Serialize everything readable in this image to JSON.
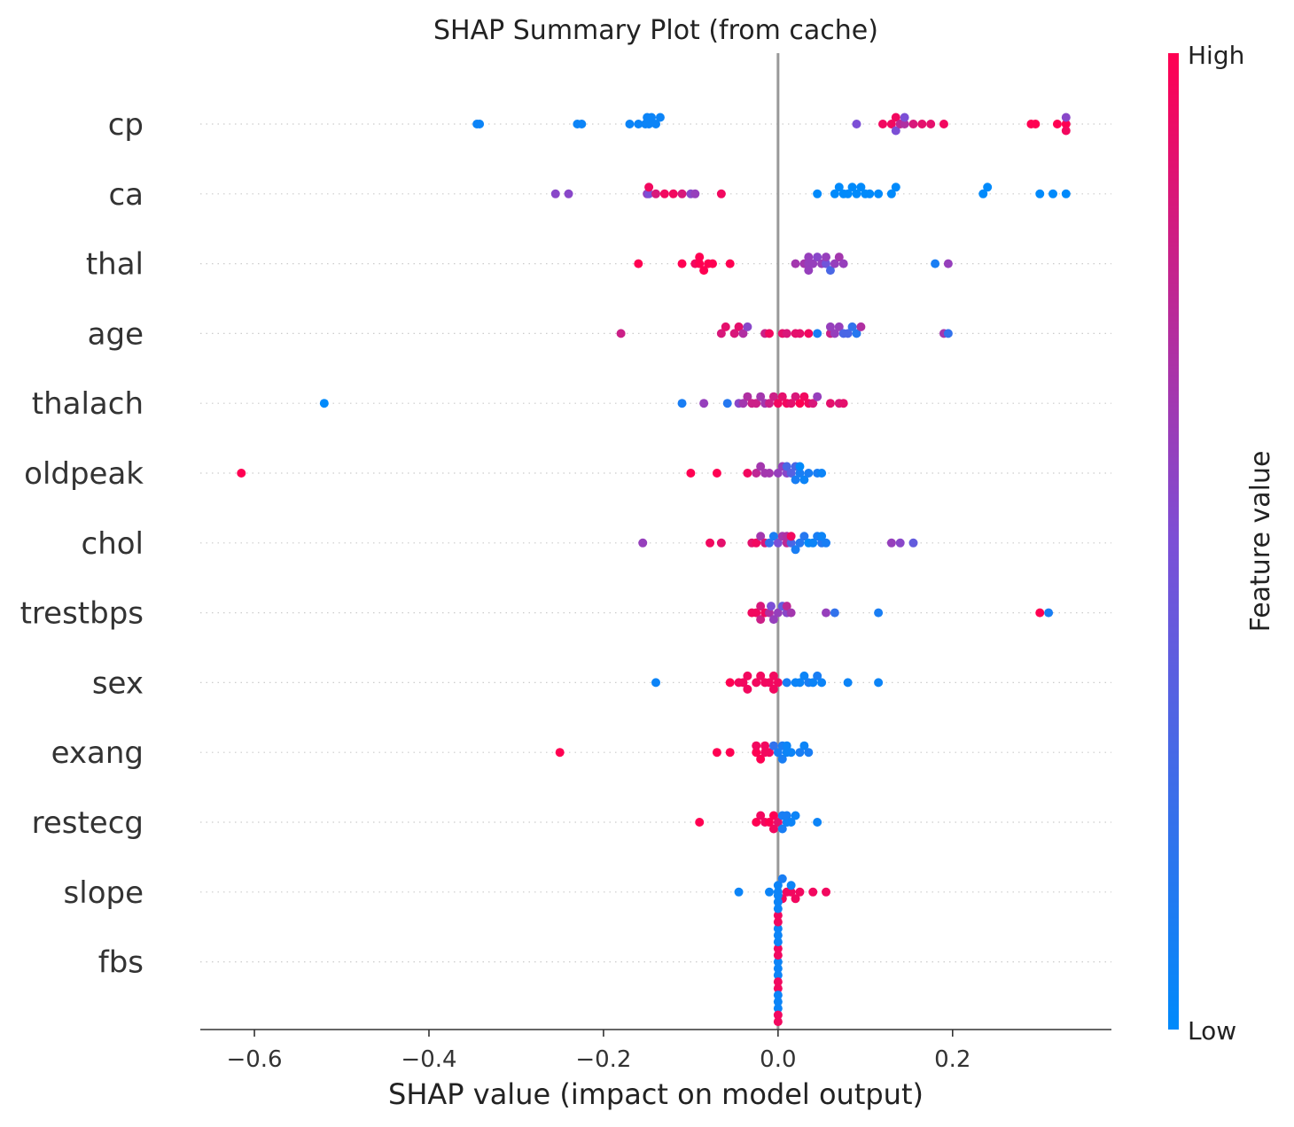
{
  "chart_data": {
    "type": "scatter",
    "title": "SHAP Summary Plot (from cache)",
    "xlabel": "SHAP value (impact on model output)",
    "ylabel": "",
    "xlim": [
      -0.662,
      0.382
    ],
    "xticks": [
      {
        "value": -0.6,
        "label": "−0.6"
      },
      {
        "value": -0.4,
        "label": "−0.4"
      },
      {
        "value": -0.2,
        "label": "−0.2"
      },
      {
        "value": 0.0,
        "label": "0.0"
      },
      {
        "value": 0.2,
        "label": "0.2"
      }
    ],
    "zero_line": 0.0,
    "grid": false,
    "colorbar": {
      "label": "Feature value",
      "high_label": "High",
      "low_label": "Low",
      "low_color": "#008afb",
      "mid_color": "#7c4fd6",
      "high_color": "#ff0052"
    },
    "features": [
      {
        "name": "cp",
        "points": [
          [
            -0.345,
            0.05
          ],
          [
            -0.342,
            0.05
          ],
          [
            -0.23,
            0.05
          ],
          [
            -0.225,
            0.05
          ],
          [
            -0.17,
            0.05
          ],
          [
            -0.145,
            0.05
          ],
          [
            -0.14,
            0.05
          ],
          [
            -0.16,
            0.05
          ],
          [
            -0.135,
            0.05
          ],
          [
            -0.15,
            0.05
          ],
          [
            -0.148,
            0.05
          ],
          [
            -0.152,
            0.05
          ],
          [
            0.09,
            0.5
          ],
          [
            0.12,
            0.95
          ],
          [
            0.135,
            0.95
          ],
          [
            0.14,
            0.75
          ],
          [
            0.145,
            0.7
          ],
          [
            0.155,
            0.85
          ],
          [
            0.165,
            0.9
          ],
          [
            0.175,
            0.9
          ],
          [
            0.19,
            0.95
          ],
          [
            0.145,
            0.5
          ],
          [
            0.135,
            0.5
          ],
          [
            0.29,
            1.0
          ],
          [
            0.295,
            1.0
          ],
          [
            0.32,
            1.0
          ],
          [
            0.33,
            1.0
          ],
          [
            0.33,
            0.55
          ],
          [
            0.33,
            0.95
          ],
          [
            0.13,
            0.95
          ]
        ]
      },
      {
        "name": "ca",
        "points": [
          [
            -0.255,
            0.55
          ],
          [
            -0.24,
            0.55
          ],
          [
            -0.15,
            0.6
          ],
          [
            -0.148,
            0.5
          ],
          [
            -0.14,
            0.85
          ],
          [
            -0.13,
            0.95
          ],
          [
            -0.12,
            0.95
          ],
          [
            -0.11,
            0.85
          ],
          [
            -0.1,
            0.55
          ],
          [
            -0.095,
            0.6
          ],
          [
            -0.065,
            0.95
          ],
          [
            -0.148,
            0.95
          ],
          [
            0.045,
            0.0
          ],
          [
            0.065,
            0.0
          ],
          [
            0.07,
            0.0
          ],
          [
            0.075,
            0.0
          ],
          [
            0.08,
            0.0
          ],
          [
            0.085,
            0.0
          ],
          [
            0.09,
            0.0
          ],
          [
            0.095,
            0.0
          ],
          [
            0.1,
            0.0
          ],
          [
            0.105,
            0.0
          ],
          [
            0.115,
            0.0
          ],
          [
            0.13,
            0.0
          ],
          [
            0.135,
            0.0
          ],
          [
            0.235,
            0.0
          ],
          [
            0.24,
            0.0
          ],
          [
            0.3,
            0.0
          ],
          [
            0.315,
            0.0
          ],
          [
            0.33,
            0.0
          ]
        ]
      },
      {
        "name": "thal",
        "points": [
          [
            -0.16,
            1.0
          ],
          [
            -0.11,
            1.0
          ],
          [
            -0.09,
            1.0
          ],
          [
            -0.08,
            1.0
          ],
          [
            -0.075,
            1.0
          ],
          [
            -0.095,
            0.95
          ],
          [
            -0.09,
            1.0
          ],
          [
            -0.085,
            1.0
          ],
          [
            -0.055,
            1.0
          ],
          [
            0.02,
            0.65
          ],
          [
            0.03,
            0.65
          ],
          [
            0.035,
            0.6
          ],
          [
            0.04,
            0.6
          ],
          [
            0.045,
            0.55
          ],
          [
            0.05,
            0.6
          ],
          [
            0.055,
            0.45
          ],
          [
            0.06,
            0.3
          ],
          [
            0.065,
            0.6
          ],
          [
            0.07,
            0.65
          ],
          [
            0.075,
            0.6
          ],
          [
            0.035,
            0.6
          ],
          [
            0.055,
            0.6
          ],
          [
            0.035,
            0.6
          ],
          [
            0.18,
            0.1
          ],
          [
            0.195,
            0.6
          ]
        ]
      },
      {
        "name": "age",
        "points": [
          [
            -0.18,
            0.8
          ],
          [
            -0.065,
            0.85
          ],
          [
            -0.06,
            0.9
          ],
          [
            -0.05,
            0.85
          ],
          [
            -0.045,
            0.9
          ],
          [
            -0.04,
            0.7
          ],
          [
            -0.035,
            0.55
          ],
          [
            -0.015,
            0.8
          ],
          [
            -0.01,
            0.95
          ],
          [
            0.005,
            0.9
          ],
          [
            0.01,
            0.85
          ],
          [
            0.02,
            0.9
          ],
          [
            0.025,
            0.9
          ],
          [
            0.035,
            0.95
          ],
          [
            0.045,
            0.1
          ],
          [
            0.06,
            0.8
          ],
          [
            0.065,
            0.6
          ],
          [
            0.07,
            0.6
          ],
          [
            0.075,
            0.3
          ],
          [
            0.08,
            0.3
          ],
          [
            0.085,
            0.2
          ],
          [
            0.09,
            0.15
          ],
          [
            0.095,
            0.7
          ],
          [
            0.19,
            0.65
          ],
          [
            0.195,
            0.2
          ],
          [
            0.06,
            0.6
          ]
        ]
      },
      {
        "name": "thalach",
        "points": [
          [
            -0.52,
            0.0
          ],
          [
            -0.11,
            0.1
          ],
          [
            -0.085,
            0.6
          ],
          [
            -0.058,
            0.15
          ],
          [
            -0.04,
            0.65
          ],
          [
            -0.035,
            0.7
          ],
          [
            -0.03,
            0.8
          ],
          [
            -0.025,
            0.8
          ],
          [
            -0.02,
            0.65
          ],
          [
            -0.015,
            0.65
          ],
          [
            -0.01,
            0.8
          ],
          [
            -0.005,
            0.8
          ],
          [
            0.0,
            0.95
          ],
          [
            0.005,
            0.9
          ],
          [
            0.01,
            0.95
          ],
          [
            0.015,
            0.9
          ],
          [
            0.02,
            0.85
          ],
          [
            0.025,
            1.0
          ],
          [
            0.03,
            0.95
          ],
          [
            0.035,
            0.95
          ],
          [
            0.04,
            0.85
          ],
          [
            0.045,
            0.6
          ],
          [
            0.06,
            0.9
          ],
          [
            0.07,
            0.85
          ],
          [
            0.075,
            0.9
          ],
          [
            -0.045,
            0.55
          ]
        ]
      },
      {
        "name": "oldpeak",
        "points": [
          [
            -0.615,
            1.0
          ],
          [
            -0.1,
            1.0
          ],
          [
            -0.07,
            1.0
          ],
          [
            -0.035,
            0.95
          ],
          [
            -0.025,
            0.75
          ],
          [
            -0.02,
            0.65
          ],
          [
            -0.015,
            0.65
          ],
          [
            -0.01,
            0.65
          ],
          [
            0.0,
            0.6
          ],
          [
            0.005,
            0.6
          ],
          [
            0.01,
            0.55
          ],
          [
            0.015,
            0.35
          ],
          [
            0.02,
            0.3
          ],
          [
            0.025,
            0.1
          ],
          [
            0.03,
            0.05
          ],
          [
            0.035,
            0.1
          ],
          [
            0.045,
            0.1
          ],
          [
            0.05,
            0.05
          ],
          [
            0.02,
            0.1
          ],
          [
            0.01,
            0.3
          ],
          [
            0.025,
            0.0
          ]
        ]
      },
      {
        "name": "chol",
        "points": [
          [
            -0.155,
            0.6
          ],
          [
            -0.078,
            0.95
          ],
          [
            -0.065,
            0.9
          ],
          [
            -0.03,
            0.9
          ],
          [
            -0.025,
            0.95
          ],
          [
            -0.02,
            0.65
          ],
          [
            -0.015,
            0.85
          ],
          [
            -0.01,
            0.2
          ],
          [
            -0.005,
            0.1
          ],
          [
            0.0,
            0.5
          ],
          [
            0.005,
            0.65
          ],
          [
            0.01,
            0.75
          ],
          [
            0.015,
            0.3
          ],
          [
            0.02,
            0.1
          ],
          [
            0.025,
            0.15
          ],
          [
            0.03,
            0.15
          ],
          [
            0.035,
            0.0
          ],
          [
            0.04,
            0.05
          ],
          [
            0.045,
            0.1
          ],
          [
            0.05,
            0.15
          ],
          [
            0.055,
            0.1
          ],
          [
            0.015,
            0.95
          ],
          [
            0.01,
            0.7
          ],
          [
            0.13,
            0.6
          ],
          [
            0.14,
            0.55
          ],
          [
            0.155,
            0.4
          ],
          [
            0.05,
            0.05
          ]
        ]
      },
      {
        "name": "trestbps",
        "points": [
          [
            -0.03,
            0.95
          ],
          [
            -0.025,
            0.95
          ],
          [
            -0.02,
            0.85
          ],
          [
            -0.015,
            0.95
          ],
          [
            -0.01,
            0.7
          ],
          [
            -0.005,
            0.6
          ],
          [
            0.0,
            0.6
          ],
          [
            0.005,
            0.4
          ],
          [
            0.01,
            0.55
          ],
          [
            0.015,
            0.65
          ],
          [
            -0.008,
            0.5
          ],
          [
            0.01,
            0.75
          ],
          [
            0.055,
            0.6
          ],
          [
            0.065,
            0.2
          ],
          [
            0.115,
            0.1
          ],
          [
            0.3,
            1.0
          ],
          [
            0.31,
            0.1
          ],
          [
            -0.02,
            0.8
          ]
        ]
      },
      {
        "name": "sex",
        "points": [
          [
            -0.14,
            0.05
          ],
          [
            -0.055,
            1.0
          ],
          [
            -0.045,
            0.95
          ],
          [
            -0.035,
            0.95
          ],
          [
            -0.025,
            0.95
          ],
          [
            -0.015,
            0.95
          ],
          [
            -0.01,
            0.95
          ],
          [
            -0.005,
            0.95
          ],
          [
            0.0,
            0.95
          ],
          [
            0.02,
            0.05
          ],
          [
            0.03,
            0.05
          ],
          [
            0.04,
            0.05
          ],
          [
            0.05,
            0.05
          ],
          [
            0.025,
            0.05
          ],
          [
            0.08,
            0.05
          ],
          [
            0.115,
            0.05
          ],
          [
            0.01,
            0.1
          ],
          [
            0.035,
            0.1
          ],
          [
            0.045,
            0.1
          ],
          [
            -0.005,
            0.95
          ],
          [
            -0.02,
            0.95
          ],
          [
            -0.035,
            0.95
          ],
          [
            -0.04,
            0.95
          ]
        ]
      },
      {
        "name": "exang",
        "points": [
          [
            -0.25,
            1.0
          ],
          [
            -0.07,
            1.0
          ],
          [
            -0.055,
            1.0
          ],
          [
            -0.025,
            1.0
          ],
          [
            -0.02,
            1.0
          ],
          [
            -0.015,
            0.95
          ],
          [
            -0.01,
            0.95
          ],
          [
            -0.005,
            0.2
          ],
          [
            0.0,
            0.1
          ],
          [
            0.005,
            0.1
          ],
          [
            0.01,
            0.05
          ],
          [
            0.015,
            0.05
          ],
          [
            0.025,
            0.1
          ],
          [
            0.03,
            0.05
          ],
          [
            0.035,
            0.1
          ],
          [
            -0.025,
            0.95
          ],
          [
            -0.015,
            0.95
          ],
          [
            0.01,
            0.05
          ],
          [
            0.005,
            0.1
          ]
        ]
      },
      {
        "name": "restecg",
        "points": [
          [
            -0.09,
            1.0
          ],
          [
            -0.025,
            1.0
          ],
          [
            -0.02,
            0.95
          ],
          [
            -0.015,
            0.95
          ],
          [
            -0.01,
            1.0
          ],
          [
            -0.005,
            1.0
          ],
          [
            0.0,
            0.9
          ],
          [
            0.005,
            0.1
          ],
          [
            0.01,
            0.05
          ],
          [
            0.015,
            0.05
          ],
          [
            0.02,
            0.05
          ],
          [
            0.045,
            0.05
          ],
          [
            -0.005,
            0.95
          ],
          [
            0.005,
            0.1
          ],
          [
            0.01,
            0.1
          ]
        ]
      },
      {
        "name": "slope",
        "points": [
          [
            -0.045,
            0.05
          ],
          [
            -0.01,
            0.05
          ],
          [
            0.0,
            0.05
          ],
          [
            0.005,
            0.95
          ],
          [
            0.01,
            0.95
          ],
          [
            0.015,
            0.95
          ],
          [
            0.02,
            0.95
          ],
          [
            0.025,
            0.95
          ],
          [
            0.04,
            0.95
          ],
          [
            0.055,
            0.95
          ],
          [
            0.0,
            0.05
          ],
          [
            0.005,
            0.1
          ],
          [
            0.015,
            0.05
          ]
        ]
      },
      {
        "name": "fbs",
        "points": [
          [
            0.0,
            0.05
          ],
          [
            0.0,
            0.95
          ],
          [
            0.0,
            0.05
          ],
          [
            0.0,
            0.95
          ],
          [
            0.0,
            0.05
          ],
          [
            0.0,
            0.05
          ],
          [
            0.0,
            0.95
          ],
          [
            0.0,
            0.05
          ],
          [
            0.0,
            0.95
          ],
          [
            0.0,
            0.05
          ],
          [
            0.0,
            0.05
          ],
          [
            0.0,
            0.95
          ],
          [
            0.0,
            0.05
          ],
          [
            0.0,
            0.95
          ],
          [
            0.0,
            0.05
          ],
          [
            0.0,
            0.05
          ],
          [
            0.0,
            0.95
          ],
          [
            0.0,
            0.05
          ],
          [
            0.0,
            0.95
          ],
          [
            0.0,
            0.05
          ]
        ]
      }
    ]
  }
}
